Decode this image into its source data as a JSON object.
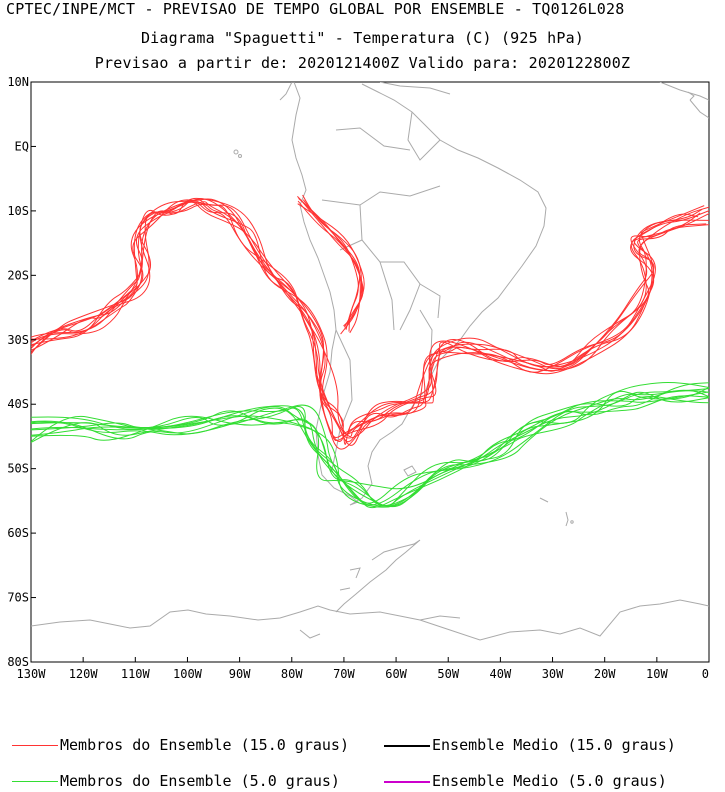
{
  "titles": {
    "line1": "CPTEC/INPE/MCT - PREVISAO DE TEMPO GLOBAL POR ENSEMBLE - TQ0126L028",
    "line2": "Diagrama \"Spaguetti\" - Temperatura (C) (925 hPa)",
    "line3": "Previsao a partir de: 2020121400Z  Valido para: 2020122800Z"
  },
  "map": {
    "lon_range": [
      -130,
      0
    ],
    "lat_range": [
      -80,
      10
    ],
    "y_ticks": [
      "10N",
      "EQ",
      "10S",
      "20S",
      "30S",
      "40S",
      "50S",
      "60S",
      "70S",
      "80S"
    ],
    "x_ticks": [
      "130W",
      "120W",
      "110W",
      "100W",
      "90W",
      "80W",
      "70W",
      "60W",
      "50W",
      "40W",
      "30W",
      "20W",
      "10W",
      "0"
    ],
    "coastline_color": "#aaaaaa"
  },
  "legend": {
    "red_members": "Membros do Ensemble (15.0 graus)",
    "red_mean": "Ensemble Medio (15.0 graus)",
    "green_members": "Membros do Ensemble (5.0 graus)",
    "green_mean": "Ensemble Medio (5.0 graus)",
    "colors": {
      "red": "#ff3333",
      "black": "#000000",
      "green": "#33dd33",
      "purple": "#cc00cc"
    }
  }
}
